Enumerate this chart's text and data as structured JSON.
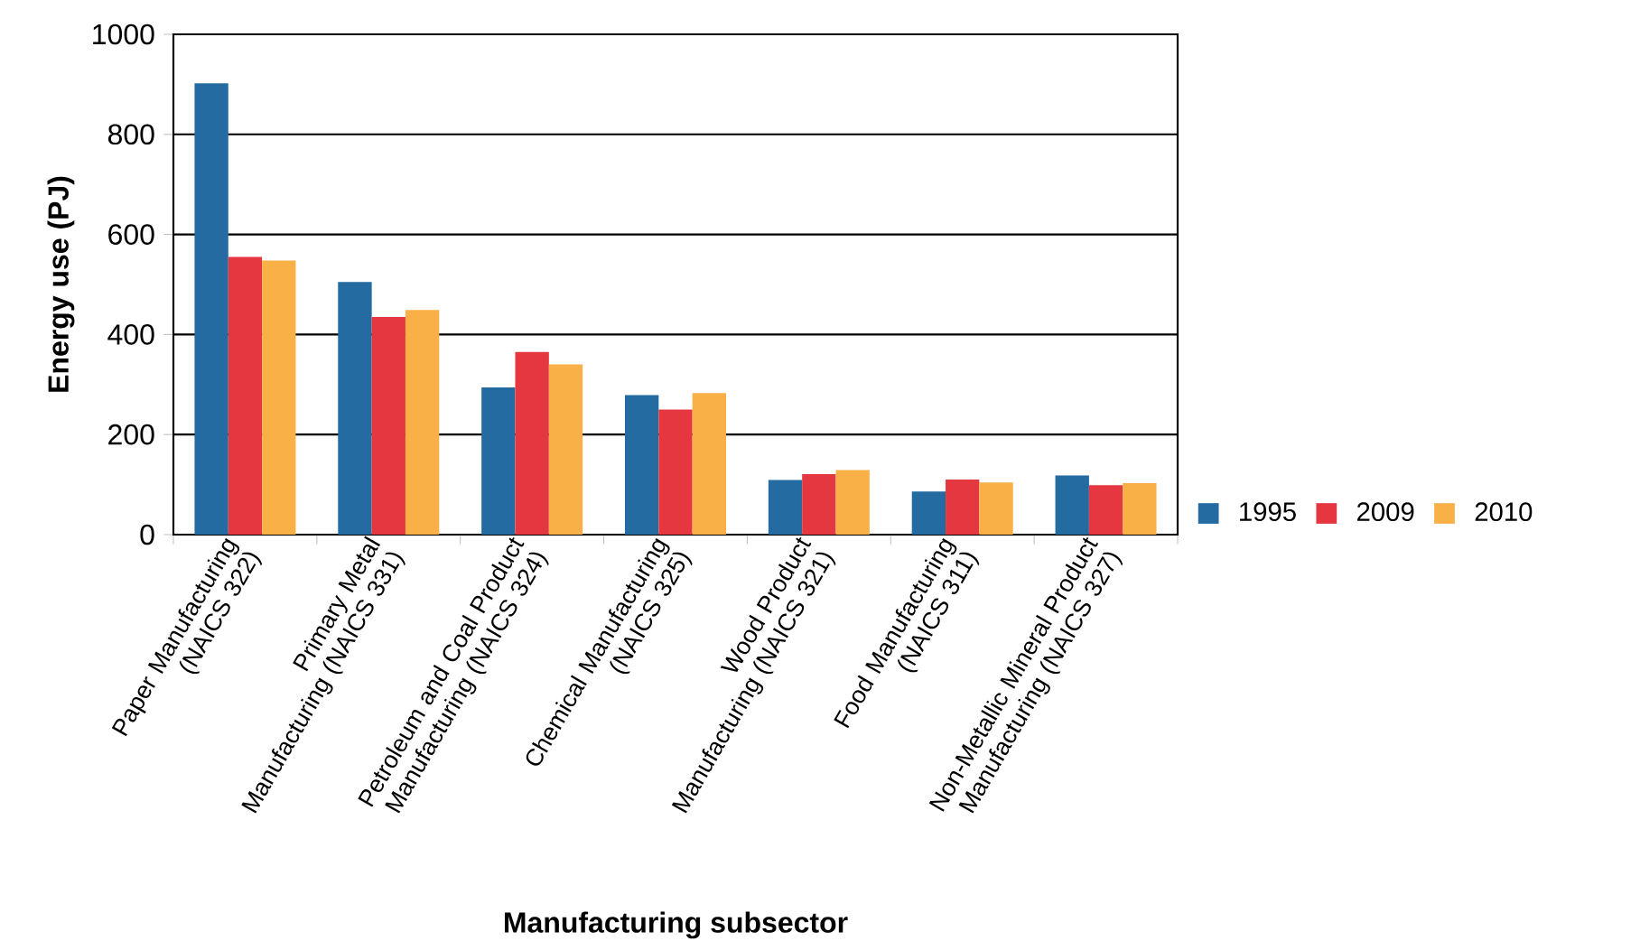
{
  "chart_data": {
    "type": "bar",
    "xlabel": "Manufacturing subsector",
    "ylabel": "Energy use (PJ)",
    "categories": [
      "Paper Manufacturing (NAICS 322)",
      "Primary Metal Manufacturing (NAICS 331)",
      "Petroleum and Coal Product Manufacturing (NAICS 324)",
      "Chemical Manufacturing (NAICS 325)",
      "Wood Product Manufacturing (NAICS 321)",
      "Food Manufacturing (NAICS 311)",
      "Non-Metallic Mineral Product Manufacturing (NAICS 327)"
    ],
    "series": [
      {
        "name": "1995",
        "color": "#236ba0",
        "values": [
          902,
          505,
          294,
          279,
          109,
          86,
          118
        ]
      },
      {
        "name": "2009",
        "color": "#e53740",
        "values": [
          555,
          435,
          365,
          250,
          121,
          110,
          99
        ]
      },
      {
        "name": "2010",
        "color": "#f9b046",
        "values": [
          548,
          449,
          340,
          283,
          129,
          104,
          103
        ]
      }
    ],
    "ylim": [
      0,
      1000
    ],
    "yticks": [
      0,
      200,
      400,
      600,
      800,
      1000
    ],
    "grid": "y",
    "legend": "right"
  }
}
